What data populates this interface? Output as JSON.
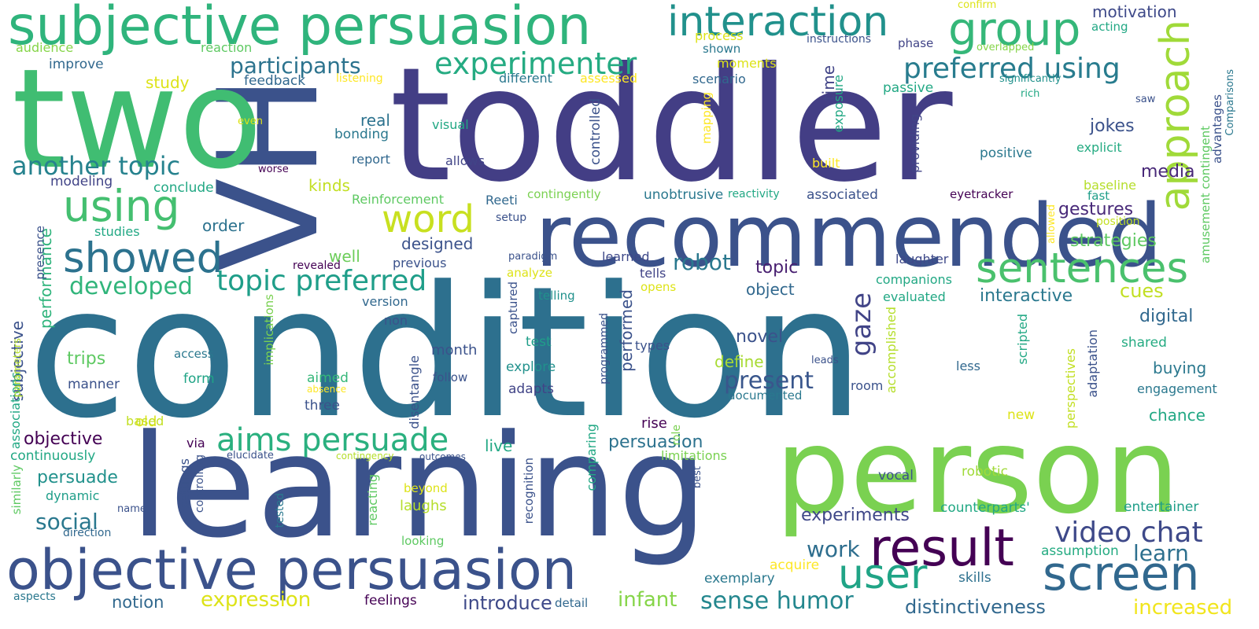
{
  "background": "#ffffff",
  "palette": [
    "#440154",
    "#414487",
    "#2a788e",
    "#22a884",
    "#7ad151",
    "#fde725"
  ],
  "words": [
    {
      "text": "condition",
      "color": "#2d708e"
    },
    {
      "text": "toddler",
      "color": "#433e85"
    },
    {
      "text": "person",
      "color": "#7ad151"
    },
    {
      "text": "learning",
      "color": "#3b528b"
    },
    {
      "text": "VH",
      "color": "#3b528b"
    },
    {
      "text": "two",
      "color": "#40bd72"
    },
    {
      "text": "recommended",
      "color": "#3b528b"
    },
    {
      "text": "subjective persuasion",
      "color": "#2fb47c"
    },
    {
      "text": "objective persuasion",
      "color": "#3b528b"
    },
    {
      "text": "interaction",
      "color": "#21918c"
    },
    {
      "text": "group",
      "color": "#35b779"
    },
    {
      "text": "result",
      "color": "#440154"
    },
    {
      "text": "screen",
      "color": "#31688e"
    },
    {
      "text": "sentences",
      "color": "#4ac16d"
    },
    {
      "text": "using",
      "color": "#44bf70"
    },
    {
      "text": "showed",
      "color": "#2c728e"
    },
    {
      "text": "word",
      "color": "#c8e020"
    },
    {
      "text": "user",
      "color": "#20a486"
    },
    {
      "text": "approach",
      "color": "#a0da39"
    },
    {
      "text": "experimenter",
      "color": "#25ab82"
    },
    {
      "text": "aims persuade",
      "color": "#2ab07f"
    },
    {
      "text": "topic preferred",
      "color": "#1f9e89"
    },
    {
      "text": "another topic",
      "color": "#26828e"
    },
    {
      "text": "preferred using",
      "color": "#287c8e"
    },
    {
      "text": "video chat",
      "color": "#3e4989"
    },
    {
      "text": "gaze",
      "color": "#414487"
    },
    {
      "text": "developed",
      "color": "#31b57b"
    },
    {
      "text": "participants",
      "color": "#2c738e"
    },
    {
      "text": "sense humor",
      "color": "#24878e"
    },
    {
      "text": "present",
      "color": "#39568c"
    },
    {
      "text": "robot",
      "color": "#2a788e"
    },
    {
      "text": "expression",
      "color": "#dde318"
    },
    {
      "text": "infant",
      "color": "#86d549"
    },
    {
      "text": "increased",
      "color": "#f1e51d"
    },
    {
      "text": "distinctiveness",
      "color": "#31688e"
    },
    {
      "text": "introduce",
      "color": "#3e4989"
    },
    {
      "text": "social",
      "color": "#2a788e"
    },
    {
      "text": "learn",
      "color": "#2d708e"
    },
    {
      "text": "work",
      "color": "#2e6e8e"
    },
    {
      "text": "experiments",
      "color": "#3f4788"
    },
    {
      "text": "objective",
      "color": "#440154"
    },
    {
      "text": "persuade",
      "color": "#21918c"
    },
    {
      "text": "persuasion",
      "color": "#2c728e"
    },
    {
      "text": "cues",
      "color": "#c2df23"
    },
    {
      "text": "digital",
      "color": "#31688e"
    },
    {
      "text": "jokes",
      "color": "#3b528b"
    },
    {
      "text": "media",
      "color": "#482878"
    },
    {
      "text": "gestures",
      "color": "#482979"
    },
    {
      "text": "strategies",
      "color": "#5ec962"
    },
    {
      "text": "interactive",
      "color": "#2a788e"
    },
    {
      "text": "motivation",
      "color": "#3e4989"
    },
    {
      "text": "buying",
      "color": "#2a788e"
    },
    {
      "text": "chance",
      "color": "#22a884"
    },
    {
      "text": "novel",
      "color": "#3b528b"
    },
    {
      "text": "define",
      "color": "#a8db34"
    },
    {
      "text": "topic",
      "color": "#481f70"
    },
    {
      "text": "object",
      "color": "#31688e"
    },
    {
      "text": "designed",
      "color": "#3b528b"
    },
    {
      "text": "kinds",
      "color": "#c2df23"
    },
    {
      "text": "trips",
      "color": "#5ec962"
    },
    {
      "text": "order",
      "color": "#2c728e"
    },
    {
      "text": "live",
      "color": "#22a884"
    },
    {
      "text": "well",
      "color": "#6ccd5a"
    },
    {
      "text": "real",
      "color": "#2c728e"
    },
    {
      "text": "study",
      "color": "#dde318"
    },
    {
      "text": "time",
      "color": "#414487"
    },
    {
      "text": "performed",
      "color": "#3b528b"
    },
    {
      "text": "performance",
      "color": "#2fb47c"
    },
    {
      "text": "subjective",
      "color": "#3b528b"
    },
    {
      "text": "laughs",
      "color": "#b5de2b"
    },
    {
      "text": "entertainer",
      "color": "#1f9e89"
    },
    {
      "text": "acquire",
      "color": "#fde725"
    },
    {
      "text": "exemplary",
      "color": "#2a788e"
    },
    {
      "text": "skills",
      "color": "#2d708e"
    },
    {
      "text": "assumption",
      "color": "#25ab82"
    },
    {
      "text": "notion",
      "color": "#31688e"
    },
    {
      "text": "feelings",
      "color": "#440154"
    },
    {
      "text": "detail",
      "color": "#31688e"
    },
    {
      "text": "counterparts'",
      "color": "#22a884"
    },
    {
      "text": "vocal",
      "color": "#3b528b"
    },
    {
      "text": "robotic",
      "color": "#a0da39"
    },
    {
      "text": "rise",
      "color": "#440154"
    },
    {
      "text": "three",
      "color": "#3b528b"
    },
    {
      "text": "aimed",
      "color": "#35b779"
    },
    {
      "text": "form",
      "color": "#20a486"
    },
    {
      "text": "manner",
      "color": "#3b528b"
    },
    {
      "text": "old",
      "color": "#dde318"
    },
    {
      "text": "via",
      "color": "#440154"
    },
    {
      "text": "continuously",
      "color": "#22a884"
    },
    {
      "text": "dynamic",
      "color": "#1f9e89"
    },
    {
      "text": "name",
      "color": "#3b528b"
    },
    {
      "text": "direction",
      "color": "#31688e"
    },
    {
      "text": "aspects",
      "color": "#2a788e"
    },
    {
      "text": "month",
      "color": "#3b528b"
    },
    {
      "text": "test",
      "color": "#1f9e89"
    },
    {
      "text": "explore",
      "color": "#21918c"
    },
    {
      "text": "adapts",
      "color": "#414487"
    },
    {
      "text": "types",
      "color": "#3b528b"
    },
    {
      "text": "tells",
      "color": "#414487"
    },
    {
      "text": "learned",
      "color": "#3e4989"
    },
    {
      "text": "opens",
      "color": "#dde318"
    },
    {
      "text": "analyze",
      "color": "#dde318"
    },
    {
      "text": "telling",
      "color": "#21918c"
    },
    {
      "text": "paradigm",
      "color": "#3b528b"
    },
    {
      "text": "version",
      "color": "#31688e"
    },
    {
      "text": "previous",
      "color": "#3b528b"
    },
    {
      "text": "non",
      "color": "#3b528b"
    },
    {
      "text": "based",
      "color": "#c2df23"
    },
    {
      "text": "access",
      "color": "#2a788e"
    },
    {
      "text": "absence",
      "color": "#fde725"
    },
    {
      "text": "elucidate",
      "color": "#3b528b"
    },
    {
      "text": "contingency",
      "color": "#b5de2b"
    },
    {
      "text": "outcomes",
      "color": "#3b528b"
    },
    {
      "text": "follow",
      "color": "#3b528b"
    },
    {
      "text": "beyond",
      "color": "#dde318"
    },
    {
      "text": "looking",
      "color": "#5ec962"
    },
    {
      "text": "limitations",
      "color": "#7ad151"
    },
    {
      "text": "shared",
      "color": "#25ab82"
    },
    {
      "text": "engagement",
      "color": "#2a788e"
    },
    {
      "text": "less",
      "color": "#31688e"
    },
    {
      "text": "room",
      "color": "#3b528b"
    },
    {
      "text": "documented",
      "color": "#2a788e"
    },
    {
      "text": "leads",
      "color": "#3b528b"
    },
    {
      "text": "new",
      "color": "#dde318"
    },
    {
      "text": "evaluated",
      "color": "#22a884"
    },
    {
      "text": "companions",
      "color": "#22a884"
    },
    {
      "text": "laughter",
      "color": "#3e4989"
    },
    {
      "text": "associated",
      "color": "#3b528b"
    },
    {
      "text": "eyetracker",
      "color": "#440154"
    },
    {
      "text": "fast",
      "color": "#1f9e89"
    },
    {
      "text": "baseline",
      "color": "#b5de2b"
    },
    {
      "text": "position",
      "color": "#c2df23"
    },
    {
      "text": "explicit",
      "color": "#25ab82"
    },
    {
      "text": "positive",
      "color": "#2a788e"
    },
    {
      "text": "built",
      "color": "#fde725"
    },
    {
      "text": "passive",
      "color": "#22a884"
    },
    {
      "text": "exposure",
      "color": "#22a884"
    },
    {
      "text": "providing",
      "color": "#414487"
    },
    {
      "text": "scenario",
      "color": "#31688e"
    },
    {
      "text": "moments",
      "color": "#dde318"
    },
    {
      "text": "shown",
      "color": "#2a788e"
    },
    {
      "text": "process",
      "color": "#dde318"
    },
    {
      "text": "assessed",
      "color": "#fde725"
    },
    {
      "text": "different",
      "color": "#2a788e"
    },
    {
      "text": "listening",
      "color": "#fde725"
    },
    {
      "text": "feedback",
      "color": "#31688e"
    },
    {
      "text": "improve",
      "color": "#31688e"
    },
    {
      "text": "reaction",
      "color": "#5ec962"
    },
    {
      "text": "audience",
      "color": "#86d549"
    },
    {
      "text": "instructions",
      "color": "#3b528b"
    },
    {
      "text": "phase",
      "color": "#414487"
    },
    {
      "text": "overlapped",
      "color": "#86d549"
    },
    {
      "text": "confirm",
      "color": "#dde318"
    },
    {
      "text": "acting",
      "color": "#22a884"
    },
    {
      "text": "significantly",
      "color": "#21918c"
    },
    {
      "text": "rich",
      "color": "#22a884"
    },
    {
      "text": "saw",
      "color": "#3b528b"
    },
    {
      "text": "even",
      "color": "#dde318"
    },
    {
      "text": "bonding",
      "color": "#2a788e"
    },
    {
      "text": "report",
      "color": "#31688e"
    },
    {
      "text": "allows",
      "color": "#414487"
    },
    {
      "text": "visual",
      "color": "#22a884"
    },
    {
      "text": "worse",
      "color": "#440154"
    },
    {
      "text": "modeling",
      "color": "#414487"
    },
    {
      "text": "conclude",
      "color": "#22a884"
    },
    {
      "text": "studies",
      "color": "#22a884"
    },
    {
      "text": "Reinforcement",
      "color": "#5ec962"
    },
    {
      "text": "Reeti",
      "color": "#31688e"
    },
    {
      "text": "setup",
      "color": "#3b528b"
    },
    {
      "text": "contingently",
      "color": "#7ad151"
    },
    {
      "text": "unobtrusive",
      "color": "#2a788e"
    },
    {
      "text": "reactivity",
      "color": "#22a884"
    },
    {
      "text": "revealed",
      "color": "#440154"
    },
    {
      "text": "controlled",
      "color": "#3b528b"
    },
    {
      "text": "mapping",
      "color": "#fde725"
    },
    {
      "text": "presence",
      "color": "#3b528b"
    },
    {
      "text": "associations",
      "color": "#22a884"
    },
    {
      "text": "parameters",
      "color": "#b5de2b"
    },
    {
      "text": "similarly",
      "color": "#5ec962"
    },
    {
      "text": "settings",
      "color": "#3b528b"
    },
    {
      "text": "controlling",
      "color": "#3b528b"
    },
    {
      "text": "tested",
      "color": "#2a788e"
    },
    {
      "text": "implications",
      "color": "#7ad151"
    },
    {
      "text": "reacting",
      "color": "#5ec962"
    },
    {
      "text": "disentangle",
      "color": "#3b528b"
    },
    {
      "text": "captured",
      "color": "#3b528b"
    },
    {
      "text": "recognition",
      "color": "#3b528b"
    },
    {
      "text": "comparing",
      "color": "#22a884"
    },
    {
      "text": "programmed",
      "color": "#3b528b"
    },
    {
      "text": "role",
      "color": "#7ad151"
    },
    {
      "text": "best",
      "color": "#3b528b"
    },
    {
      "text": "accomplished",
      "color": "#b5de2b"
    },
    {
      "text": "scripted",
      "color": "#22a884"
    },
    {
      "text": "perspectives",
      "color": "#c2df23"
    },
    {
      "text": "adaptation",
      "color": "#3b528b"
    },
    {
      "text": "amusement contingent",
      "color": "#5ec962"
    },
    {
      "text": "advantages",
      "color": "#3b528b"
    },
    {
      "text": "Comparisons",
      "color": "#2a788e"
    },
    {
      "text": "allowed",
      "color": "#fde725"
    }
  ]
}
